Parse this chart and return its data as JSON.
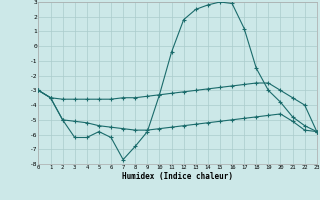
{
  "xlabel": "Humidex (Indice chaleur)",
  "xlim": [
    0,
    23
  ],
  "ylim": [
    -8,
    3
  ],
  "yticks": [
    3,
    2,
    1,
    0,
    -1,
    -2,
    -3,
    -4,
    -5,
    -6,
    -7,
    -8
  ],
  "xticks": [
    0,
    1,
    2,
    3,
    4,
    5,
    6,
    7,
    8,
    9,
    10,
    11,
    12,
    13,
    14,
    15,
    16,
    17,
    18,
    19,
    20,
    21,
    22,
    23
  ],
  "background_color": "#cce8e8",
  "grid_color": "#aacccc",
  "line_color": "#1a6b6b",
  "line1_x": [
    0,
    1,
    2,
    3,
    4,
    5,
    6,
    7,
    8,
    9,
    10,
    11,
    12,
    13,
    14,
    15,
    16,
    17,
    18,
    19,
    20,
    21,
    22,
    23
  ],
  "line1_y": [
    -3.0,
    -3.5,
    -3.6,
    -3.6,
    -3.6,
    -3.6,
    -3.6,
    -3.5,
    -3.5,
    -3.4,
    -3.3,
    -3.2,
    -3.1,
    -3.0,
    -2.9,
    -2.8,
    -2.7,
    -2.6,
    -2.5,
    -2.5,
    -3.0,
    -3.5,
    -4.0,
    -5.8
  ],
  "line2_x": [
    0,
    1,
    2,
    3,
    4,
    5,
    6,
    7,
    8,
    9,
    10,
    11,
    12,
    13,
    14,
    15,
    16,
    17,
    18,
    19,
    20,
    21,
    22,
    23
  ],
  "line2_y": [
    -3.0,
    -3.5,
    -5.0,
    -6.2,
    -6.2,
    -5.8,
    -6.2,
    -7.7,
    -6.8,
    -5.8,
    -3.3,
    -0.4,
    1.8,
    2.5,
    2.8,
    3.0,
    2.9,
    1.2,
    -1.5,
    -3.0,
    -3.8,
    -4.8,
    -5.4,
    -5.8
  ],
  "line3_x": [
    0,
    1,
    2,
    3,
    4,
    5,
    6,
    7,
    8,
    9,
    10,
    11,
    12,
    13,
    14,
    15,
    16,
    17,
    18,
    19,
    20,
    21,
    22,
    23
  ],
  "line3_y": [
    -3.0,
    -3.5,
    -5.0,
    -5.1,
    -5.2,
    -5.4,
    -5.5,
    -5.6,
    -5.7,
    -5.7,
    -5.6,
    -5.5,
    -5.4,
    -5.3,
    -5.2,
    -5.1,
    -5.0,
    -4.9,
    -4.8,
    -4.7,
    -4.6,
    -5.1,
    -5.7,
    -5.8
  ]
}
